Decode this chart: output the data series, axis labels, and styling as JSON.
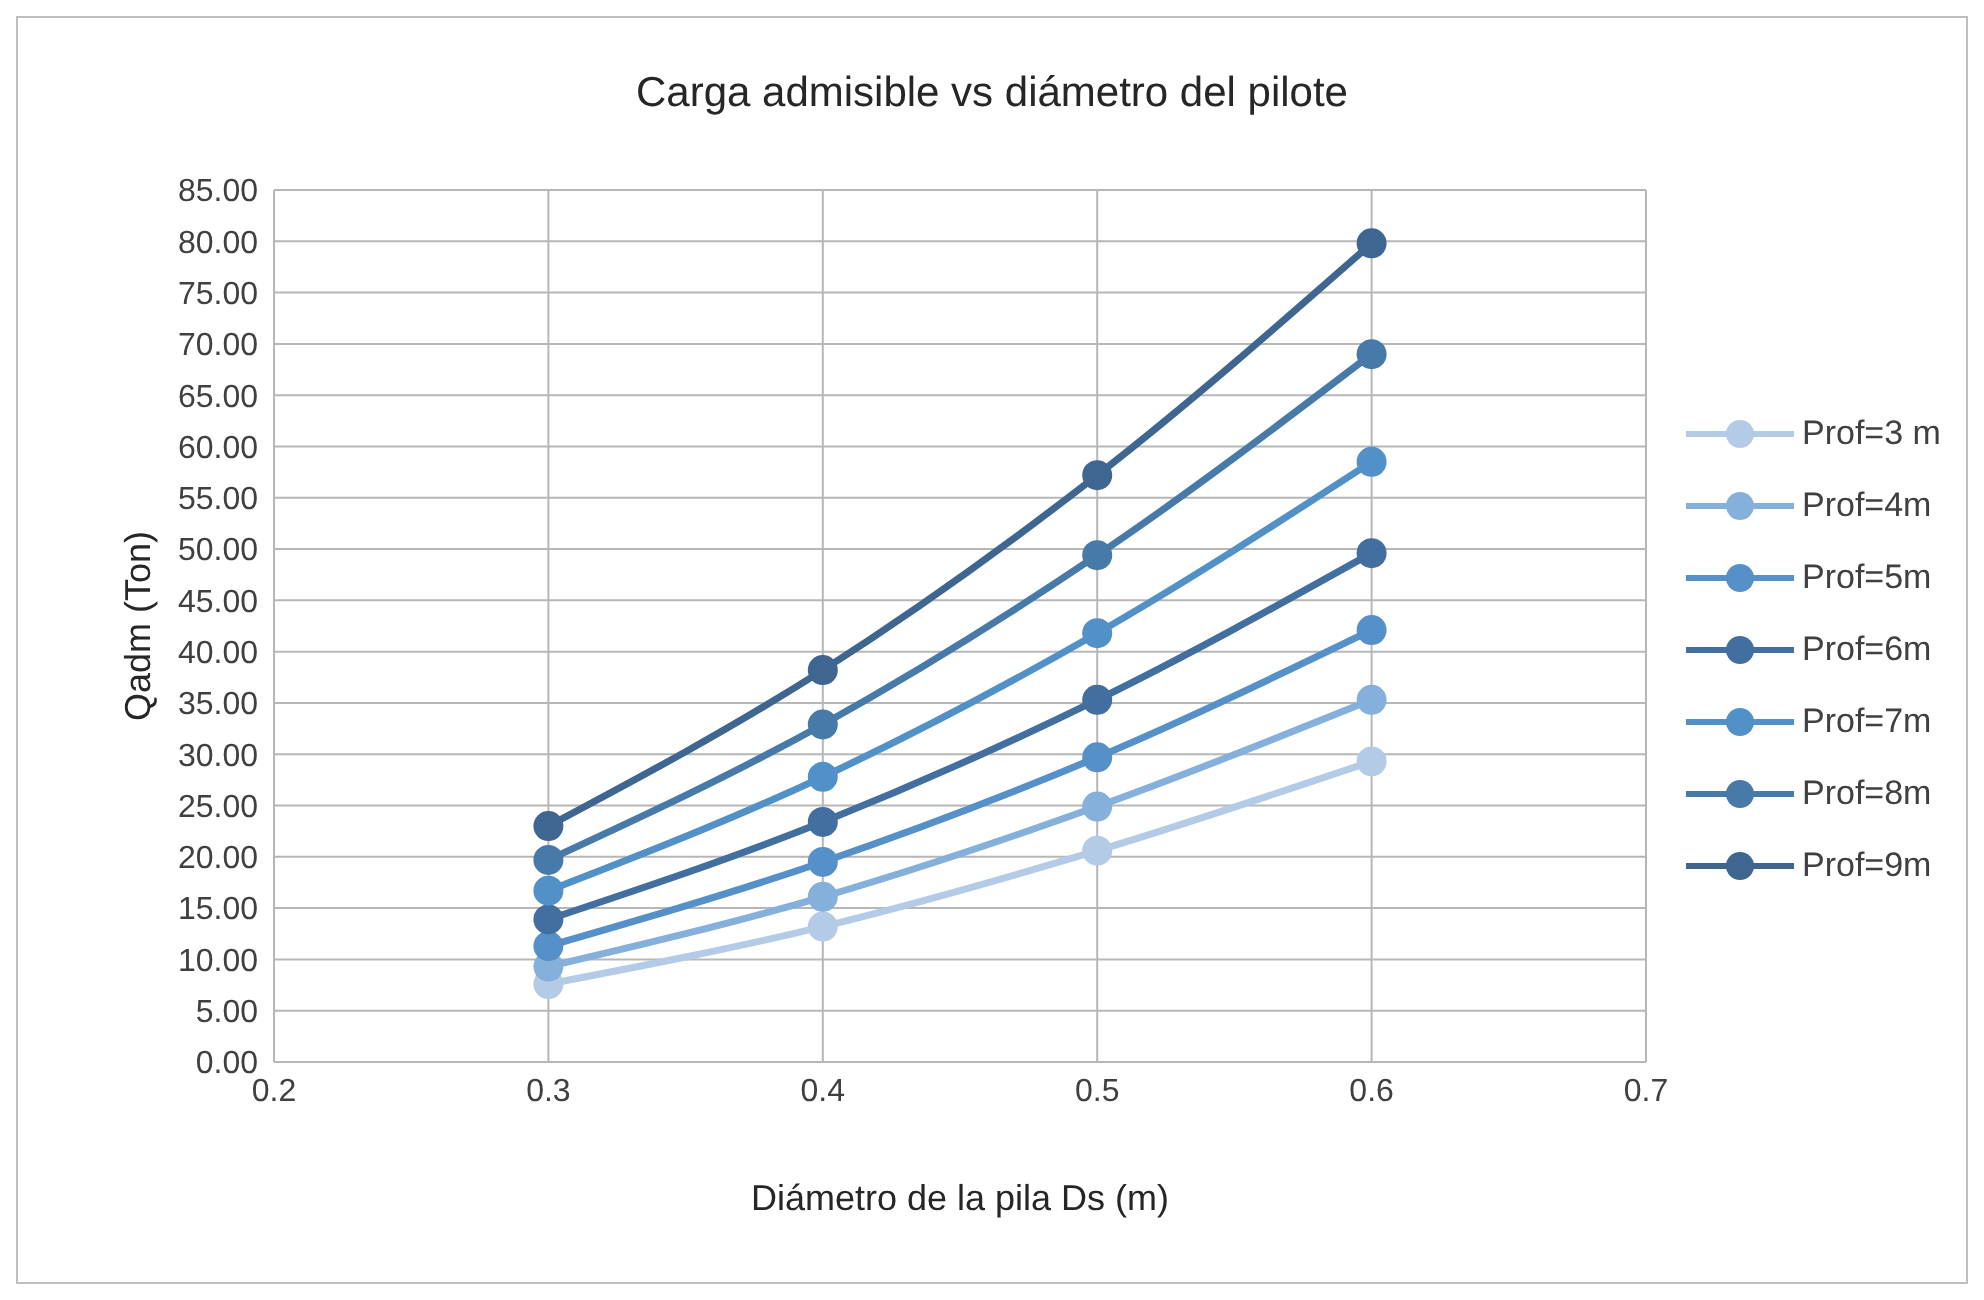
{
  "chart_data": {
    "type": "line",
    "title": "Carga admisible vs diámetro del pilote",
    "xlabel": "Diámetro de la pila Ds (m)",
    "ylabel": "Qadm (Ton)",
    "x": [
      0.3,
      0.4,
      0.5,
      0.6
    ],
    "series": [
      {
        "name": "Prof=3 m",
        "color": "#b4cbe7",
        "values": [
          7.6,
          13.2,
          20.6,
          29.3
        ]
      },
      {
        "name": "Prof=4m",
        "color": "#86b0dc",
        "values": [
          9.3,
          16.1,
          24.9,
          35.3
        ]
      },
      {
        "name": "Prof=5m",
        "color": "#5590c8",
        "values": [
          11.3,
          19.5,
          29.7,
          42.1
        ]
      },
      {
        "name": "Prof=6m",
        "color": "#426f9f",
        "values": [
          13.9,
          23.4,
          35.3,
          49.6
        ]
      },
      {
        "name": "Prof=7m",
        "color": "#5290c8",
        "values": [
          16.7,
          27.8,
          41.8,
          58.5
        ]
      },
      {
        "name": "Prof=8m",
        "color": "#4779a9",
        "values": [
          19.7,
          32.9,
          49.4,
          69.0
        ]
      },
      {
        "name": "Prof=9m",
        "color": "#3e6690",
        "values": [
          23.0,
          38.2,
          57.2,
          79.8
        ]
      }
    ],
    "xlim": [
      0.2,
      0.7
    ],
    "xticks": [
      0.2,
      0.3,
      0.4,
      0.5,
      0.6,
      0.7
    ],
    "ylim": [
      0,
      85
    ],
    "yticks": [
      {
        "value": 0,
        "label": "0.00"
      },
      {
        "value": 5,
        "label": "5.00"
      },
      {
        "value": 10,
        "label": "10.00"
      },
      {
        "value": 15,
        "label": "15.00"
      },
      {
        "value": 20,
        "label": "20.00"
      },
      {
        "value": 25,
        "label": "25.00"
      },
      {
        "value": 30,
        "label": "30.00"
      },
      {
        "value": 35,
        "label": "35.00"
      },
      {
        "value": 40,
        "label": "40.00"
      },
      {
        "value": 45,
        "label": "45.00"
      },
      {
        "value": 50,
        "label": "50.00"
      },
      {
        "value": 55,
        "label": "55.00"
      },
      {
        "value": 60,
        "label": "60.00"
      },
      {
        "value": 65,
        "label": "65.00"
      },
      {
        "value": 70,
        "label": "70.00"
      },
      {
        "value": 75,
        "label": "75.00"
      },
      {
        "value": 80,
        "label": "80.00"
      },
      {
        "value": 85,
        "label": "85.00"
      }
    ],
    "grid": true,
    "legend": "right",
    "marker": "circle",
    "line_style": "solid"
  }
}
